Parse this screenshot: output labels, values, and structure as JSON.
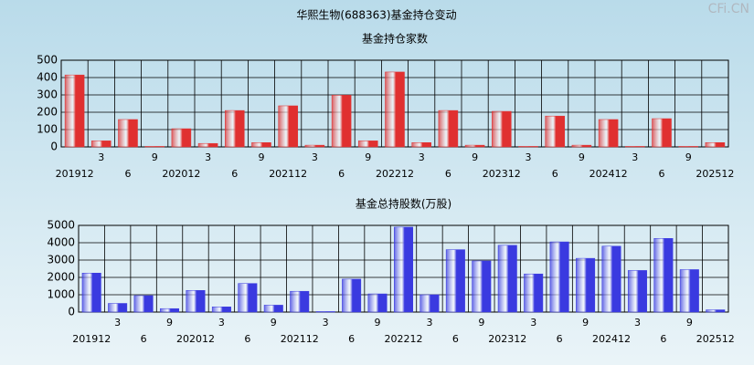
{
  "title": "华熙生物(688363)基金持仓变动",
  "watermark": "CFi.CN",
  "chart_data": [
    {
      "type": "bar",
      "title": "基金持仓家数",
      "color": "#e03030",
      "categories": [
        "201912",
        "3",
        "6",
        "9",
        "202012",
        "3",
        "6",
        "9",
        "202112",
        "3",
        "6",
        "9",
        "202212",
        "3",
        "6",
        "9",
        "202312",
        "3",
        "6",
        "9",
        "202412",
        "3",
        "6",
        "9",
        "202512"
      ],
      "values": [
        415,
        35,
        158,
        3,
        105,
        20,
        210,
        25,
        237,
        10,
        298,
        35,
        432,
        25,
        210,
        10,
        205,
        3,
        178,
        10,
        158,
        3,
        163,
        3,
        25
      ],
      "ylim": [
        0,
        500
      ],
      "yticks": [
        0,
        100,
        200,
        300,
        400,
        500
      ],
      "grid": true
    },
    {
      "type": "bar",
      "title": "基金总持股数(万股)",
      "color": "#3a3ae0",
      "categories": [
        "201912",
        "3",
        "6",
        "9",
        "202012",
        "3",
        "6",
        "9",
        "202112",
        "3",
        "6",
        "9",
        "202212",
        "3",
        "6",
        "9",
        "202312",
        "3",
        "6",
        "9",
        "202412",
        "3",
        "6",
        "9",
        "202512"
      ],
      "values": [
        2250,
        500,
        950,
        200,
        1250,
        300,
        1650,
        400,
        1200,
        30,
        1900,
        1050,
        4900,
        1000,
        3600,
        2950,
        3850,
        2200,
        4050,
        3100,
        3800,
        2400,
        4250,
        2450,
        130
      ],
      "ylim": [
        0,
        5000
      ],
      "yticks": [
        0,
        1000,
        2000,
        3000,
        4000,
        5000
      ],
      "grid": true
    }
  ]
}
